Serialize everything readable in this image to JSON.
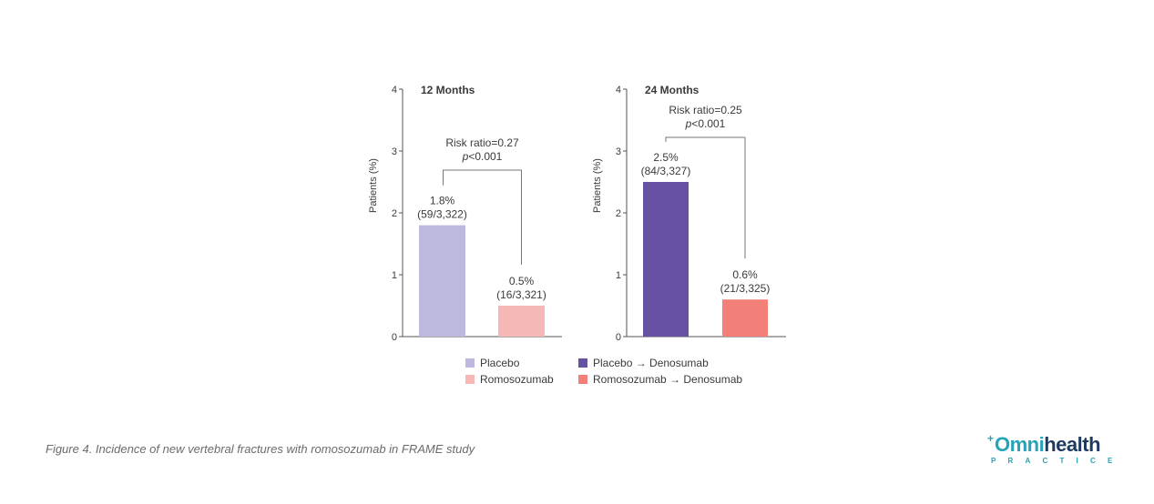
{
  "chart_data": [
    {
      "type": "bar",
      "title": "12 Months",
      "ylabel": "Patients (%)",
      "ylim": [
        0,
        4
      ],
      "yticks": [
        0,
        1,
        2,
        3,
        4
      ],
      "series": [
        {
          "name": "Placebo",
          "value": 1.8,
          "label_pct": "1.8%",
          "label_n": "(59/3,322)",
          "color": "#bdb8dd"
        },
        {
          "name": "Romosozumab",
          "value": 0.5,
          "label_pct": "0.5%",
          "label_n": "(16/3,321)",
          "color": "#f6b8b6"
        }
      ],
      "annotation": {
        "risk_ratio": "Risk ratio=0.27",
        "p_italic": "p",
        "p_rest": "<0.001"
      }
    },
    {
      "type": "bar",
      "title": "24 Months",
      "ylabel": "Patients (%)",
      "ylim": [
        0,
        4
      ],
      "yticks": [
        0,
        1,
        2,
        3,
        4
      ],
      "series": [
        {
          "name": "Placebo → Denosumab",
          "value": 2.5,
          "label_pct": "2.5%",
          "label_n": "(84/3,327)",
          "color": "#6651a3"
        },
        {
          "name": "Romosozumab → Denosumab",
          "value": 0.6,
          "label_pct": "0.6%",
          "label_n": "(21/3,325)",
          "color": "#f27f78"
        }
      ],
      "annotation": {
        "risk_ratio": "Risk ratio=0.25",
        "p_italic": "p",
        "p_rest": "<0.001"
      }
    }
  ],
  "legend": {
    "left": [
      {
        "label": "Placebo",
        "color": "#bdb8dd"
      },
      {
        "label": "Romosozumab",
        "color": "#f6b8b6"
      }
    ],
    "right": [
      {
        "label": "Placebo → Denosumab",
        "color": "#6651a3"
      },
      {
        "label": "Romosozumab → Denosumab",
        "color": "#f27f78"
      }
    ]
  },
  "caption": "Figure 4.  Incidence of new vertebral fractures with romosozumab in FRAME study",
  "logo": {
    "omni": "Omni",
    "health": "health",
    "sub": "PRACTICE",
    "cross": "+"
  }
}
